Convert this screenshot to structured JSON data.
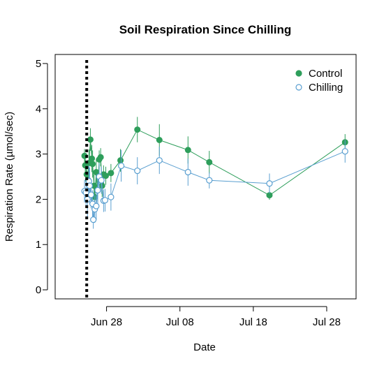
{
  "chart_data": {
    "type": "line",
    "title": "Soil Respiration Since Chilling",
    "xlabel": "Date",
    "ylabel": "Respiration Rate (µmol/sec)",
    "x_axis": {
      "kind": "date",
      "year": 2018,
      "xlim": [
        "2018-06-21",
        "2018-08-01"
      ],
      "ticks": [
        {
          "date": "2018-06-28",
          "label": "Jun 28"
        },
        {
          "date": "2018-07-08",
          "label": "Jul 08"
        },
        {
          "date": "2018-07-18",
          "label": "Jul 18"
        },
        {
          "date": "2018-07-28",
          "label": "Jul 28"
        }
      ]
    },
    "y_axis": {
      "ylim": [
        -0.2,
        5.2
      ],
      "ticks": [
        0,
        1,
        2,
        3,
        4,
        5
      ]
    },
    "grid": false,
    "legend_position": "top-right",
    "reference_line": {
      "date": "2018-06-25.3",
      "style": "dotted",
      "color": "#000000"
    },
    "series": [
      {
        "name": "Control",
        "color": "#2e9e5b",
        "marker": "filled-circle",
        "points": [
          {
            "x": "2018-06-25.0",
            "y": 2.96,
            "err": 0.15
          },
          {
            "x": "2018-06-25.1",
            "y": 2.75,
            "err": 0.2
          },
          {
            "x": "2018-06-25.3",
            "y": 2.55,
            "err": 0.25
          },
          {
            "x": "2018-06-25.5",
            "y": 2.42,
            "err": 0.3
          },
          {
            "x": "2018-06-25.6",
            "y": 2.8,
            "err": 0.3
          },
          {
            "x": "2018-06-25.8",
            "y": 3.32,
            "err": 0.25
          },
          {
            "x": "2018-06-26.0",
            "y": 2.9,
            "err": 0.3
          },
          {
            "x": "2018-06-26.1",
            "y": 2.78,
            "err": 0.3
          },
          {
            "x": "2018-06-26.3",
            "y": 2.3,
            "err": 0.25
          },
          {
            "x": "2018-06-26.4",
            "y": 2.05,
            "err": 0.3
          },
          {
            "x": "2018-06-26.6",
            "y": 2.6,
            "err": 0.3
          },
          {
            "x": "2018-06-26.8",
            "y": 2.2,
            "err": 0.25
          },
          {
            "x": "2018-06-27.0",
            "y": 2.88,
            "err": 0.2
          },
          {
            "x": "2018-06-27.2",
            "y": 2.93,
            "err": 0.2
          },
          {
            "x": "2018-06-27.4",
            "y": 2.3,
            "err": 0.25
          },
          {
            "x": "2018-06-27.6",
            "y": 2.55,
            "err": 0.2
          },
          {
            "x": "2018-06-27.9",
            "y": 2.52,
            "err": 0.2
          },
          {
            "x": "2018-06-28.6",
            "y": 2.58,
            "err": 0.2
          },
          {
            "x": "2018-06-29.9",
            "y": 2.86,
            "err": 0.25
          },
          {
            "x": "2018-07-02.2",
            "y": 3.54,
            "err": 0.28
          },
          {
            "x": "2018-07-05.2",
            "y": 3.31,
            "err": 0.35
          },
          {
            "x": "2018-07-09.1",
            "y": 3.09,
            "err": 0.3
          },
          {
            "x": "2018-07-12.0",
            "y": 2.82,
            "err": 0.25
          },
          {
            "x": "2018-07-20.2",
            "y": 2.09,
            "err": 0.1
          },
          {
            "x": "2018-07-30.5",
            "y": 3.26,
            "err": 0.18
          }
        ]
      },
      {
        "name": "Chilling",
        "color": "#5a9fd0",
        "marker": "open-circle",
        "points": [
          {
            "x": "2018-06-25.0",
            "y": 2.18,
            "err": 0.25
          },
          {
            "x": "2018-06-25.2",
            "y": 2.15,
            "err": 0.3
          },
          {
            "x": "2018-06-25.4",
            "y": 2.0,
            "err": 0.4
          },
          {
            "x": "2018-06-25.6",
            "y": 2.4,
            "err": 0.35
          },
          {
            "x": "2018-06-25.7",
            "y": 2.3,
            "err": 0.4
          },
          {
            "x": "2018-06-25.9",
            "y": 2.1,
            "err": 0.3
          },
          {
            "x": "2018-06-26.1",
            "y": 1.9,
            "err": 0.3
          },
          {
            "x": "2018-06-26.2",
            "y": 1.55,
            "err": 0.2
          },
          {
            "x": "2018-06-26.4",
            "y": 1.78,
            "err": 0.3
          },
          {
            "x": "2018-06-26.6",
            "y": 1.85,
            "err": 0.3
          },
          {
            "x": "2018-06-26.8",
            "y": 2.2,
            "err": 0.3
          },
          {
            "x": "2018-06-27.0",
            "y": 2.5,
            "err": 0.3
          },
          {
            "x": "2018-06-27.3",
            "y": 2.42,
            "err": 0.3
          },
          {
            "x": "2018-06-27.6",
            "y": 1.97,
            "err": 0.25
          },
          {
            "x": "2018-06-27.8",
            "y": 1.98,
            "err": 0.25
          },
          {
            "x": "2018-06-28.6",
            "y": 2.05,
            "err": 0.3
          },
          {
            "x": "2018-06-30.0",
            "y": 2.74,
            "err": 0.35
          },
          {
            "x": "2018-07-02.2",
            "y": 2.63,
            "err": 0.3
          },
          {
            "x": "2018-07-05.2",
            "y": 2.86,
            "err": 0.3
          },
          {
            "x": "2018-07-09.1",
            "y": 2.6,
            "err": 0.3
          },
          {
            "x": "2018-07-12.0",
            "y": 2.42,
            "err": 0.18
          },
          {
            "x": "2018-07-20.2",
            "y": 2.35,
            "err": 0.22
          },
          {
            "x": "2018-07-30.5",
            "y": 3.06,
            "err": 0.25
          }
        ]
      }
    ]
  }
}
